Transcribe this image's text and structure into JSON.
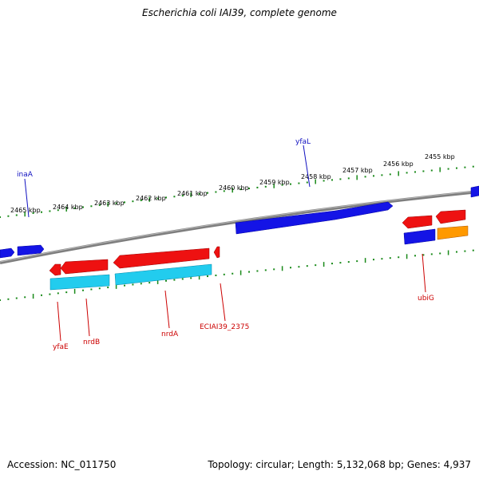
{
  "title": "Escherichia coli IAI39, complete genome",
  "footer": {
    "accession": "Accession: NC_011750",
    "summary": "Topology: circular; Length: 5,132,068 bp; Genes: 4,937"
  },
  "colors": {
    "backbone": "#8a8a8a",
    "tick": "#1a8a1a",
    "forward_cds": "#1010e0",
    "reverse_cds": "#ee1111",
    "reverse_rna": "#22ccee",
    "other": "#ff9900",
    "label_forward": "#1010c0",
    "label_reverse": "#cc0000"
  },
  "scale": {
    "unit": "kbp",
    "labels": [
      "2465 kbp",
      "2464 kbp",
      "2463 kbp",
      "2462 kbp",
      "2461 kbp",
      "2460 kbp",
      "2459 kbp",
      "2458 kbp",
      "2457 kbp",
      "2456 kbp",
      "2455 kbp"
    ]
  },
  "gene_labels": {
    "forward": [
      "inaA",
      "yfaL"
    ],
    "reverse": [
      "yfaE",
      "nrdB",
      "nrdA",
      "ECIAI39_2375",
      "ubiG"
    ]
  }
}
